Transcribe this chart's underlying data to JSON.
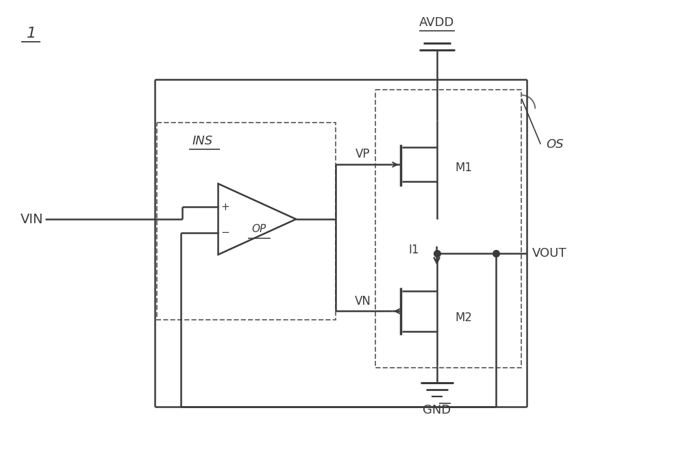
{
  "bg_color": "#ffffff",
  "line_color": "#3a3a3a",
  "dashed_color": "#6a6a6a",
  "fig_width": 10.0,
  "fig_height": 6.63,
  "label_1": "1",
  "label_VIN": "VIN",
  "label_VOUT": "VOUT",
  "label_AVDD": "AVDD",
  "label_GND": "GND",
  "label_INS": "INS",
  "label_OP": "OP",
  "label_VP": "VP",
  "label_VN": "VN",
  "label_M1": "M1",
  "label_M2": "M2",
  "label_I1": "I1",
  "label_OS": "OS"
}
